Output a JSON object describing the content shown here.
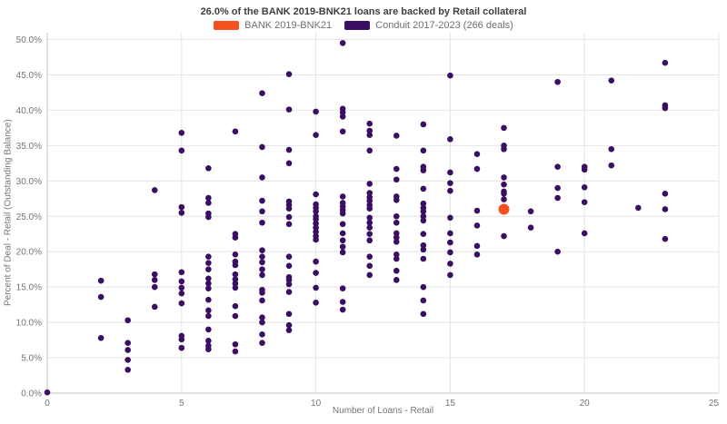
{
  "colors": {
    "bank_orange": "#f4511e",
    "conduit_purple": "#3a0f63",
    "grid": "#e4e4e4",
    "axis_line": "#c6c6c6",
    "tick_text": "#757575",
    "title_text": "#3f3f3f"
  },
  "chart_data": {
    "type": "scatter",
    "title": "26.0% of the BANK 2019-BNK21 loans are backed by Retail collateral",
    "xlabel": "Number of Loans - Retail",
    "ylabel": "Percent of Deal - Retail (Outstanding Balance)",
    "xlim": [
      0,
      25
    ],
    "ylim": [
      0,
      50
    ],
    "x_ticks": [
      0,
      5,
      10,
      15,
      20,
      25
    ],
    "y_ticks": [
      0,
      5,
      10,
      15,
      20,
      25,
      30,
      35,
      40,
      45,
      50
    ],
    "y_tick_suffix": "%",
    "grid": true,
    "legend_position": "top-center",
    "series": [
      {
        "name": "BANK 2019-BNK21",
        "color": "#f4511e",
        "marker_radius": 6,
        "points": [
          [
            17,
            26.0
          ]
        ]
      },
      {
        "name": "Conduit 2017-2023 (266 deals)",
        "color": "#3a0f63",
        "marker_radius": 3.3,
        "points": [
          [
            0,
            0.1
          ],
          [
            2,
            15.9
          ],
          [
            2,
            13.6
          ],
          [
            2,
            7.8
          ],
          [
            3,
            10.3
          ],
          [
            3,
            7.1
          ],
          [
            3,
            6.1
          ],
          [
            3,
            4.7
          ],
          [
            3,
            3.3
          ],
          [
            4,
            28.7
          ],
          [
            4,
            16.8
          ],
          [
            4,
            16.0
          ],
          [
            4,
            15.0
          ],
          [
            4,
            12.2
          ],
          [
            5,
            36.8
          ],
          [
            5,
            34.3
          ],
          [
            5,
            26.3
          ],
          [
            5,
            25.5
          ],
          [
            5,
            17.1
          ],
          [
            5,
            15.8
          ],
          [
            5,
            14.9
          ],
          [
            5,
            14.1
          ],
          [
            5,
            12.7
          ],
          [
            5,
            8.1
          ],
          [
            5,
            7.6
          ],
          [
            5,
            6.4
          ],
          [
            6,
            31.8
          ],
          [
            6,
            27.6
          ],
          [
            6,
            26.9
          ],
          [
            6,
            25.4
          ],
          [
            6,
            24.9
          ],
          [
            6,
            19.3
          ],
          [
            6,
            18.4
          ],
          [
            6,
            17.5
          ],
          [
            6,
            16.2
          ],
          [
            6,
            15.5
          ],
          [
            6,
            14.8
          ],
          [
            6,
            13.2
          ],
          [
            6,
            11.7
          ],
          [
            6,
            10.9
          ],
          [
            6,
            9.0
          ],
          [
            6,
            7.4
          ],
          [
            6,
            6.7
          ],
          [
            6,
            6.2
          ],
          [
            7,
            37.0
          ],
          [
            7,
            22.5
          ],
          [
            7,
            22.0
          ],
          [
            7,
            19.6
          ],
          [
            7,
            18.6
          ],
          [
            7,
            18.1
          ],
          [
            7,
            16.8
          ],
          [
            7,
            16.1
          ],
          [
            7,
            15.5
          ],
          [
            7,
            14.9
          ],
          [
            7,
            12.3
          ],
          [
            7,
            10.9
          ],
          [
            7,
            6.9
          ],
          [
            7,
            5.9
          ],
          [
            8,
            42.4
          ],
          [
            8,
            34.8
          ],
          [
            8,
            30.5
          ],
          [
            8,
            27.2
          ],
          [
            8,
            25.7
          ],
          [
            8,
            24.1
          ],
          [
            8,
            20.2
          ],
          [
            8,
            19.3
          ],
          [
            8,
            18.5
          ],
          [
            8,
            17.5
          ],
          [
            8,
            16.7
          ],
          [
            8,
            14.6
          ],
          [
            8,
            14.2
          ],
          [
            8,
            13.1
          ],
          [
            8,
            10.7
          ],
          [
            8,
            10.0
          ],
          [
            8,
            8.3
          ],
          [
            8,
            7.1
          ],
          [
            9,
            45.1
          ],
          [
            9,
            40.1
          ],
          [
            9,
            34.4
          ],
          [
            9,
            32.5
          ],
          [
            9,
            27.1
          ],
          [
            9,
            26.6
          ],
          [
            9,
            26.1
          ],
          [
            9,
            24.9
          ],
          [
            9,
            23.9
          ],
          [
            9,
            19.3
          ],
          [
            9,
            18.0
          ],
          [
            9,
            16.4
          ],
          [
            9,
            16.0
          ],
          [
            9,
            15.4
          ],
          [
            9,
            14.3
          ],
          [
            9,
            11.2
          ],
          [
            9,
            9.6
          ],
          [
            9,
            8.9
          ],
          [
            10,
            39.8
          ],
          [
            10,
            36.5
          ],
          [
            10,
            28.1
          ],
          [
            10,
            26.7
          ],
          [
            10,
            26.2
          ],
          [
            10,
            25.7
          ],
          [
            10,
            25.0
          ],
          [
            10,
            24.6
          ],
          [
            10,
            24.0
          ],
          [
            10,
            23.4
          ],
          [
            10,
            22.8
          ],
          [
            10,
            22.2
          ],
          [
            10,
            21.7
          ],
          [
            10,
            18.6
          ],
          [
            10,
            17.0
          ],
          [
            10,
            14.9
          ],
          [
            10,
            12.8
          ],
          [
            11,
            49.5
          ],
          [
            11,
            40.2
          ],
          [
            11,
            39.7
          ],
          [
            11,
            39.1
          ],
          [
            11,
            37.0
          ],
          [
            11,
            27.8
          ],
          [
            11,
            26.9
          ],
          [
            11,
            26.4
          ],
          [
            11,
            25.9
          ],
          [
            11,
            25.4
          ],
          [
            11,
            23.9
          ],
          [
            11,
            22.6
          ],
          [
            11,
            21.6
          ],
          [
            11,
            20.7
          ],
          [
            11,
            19.9
          ],
          [
            11,
            14.8
          ],
          [
            11,
            12.9
          ],
          [
            11,
            11.8
          ],
          [
            12,
            38.1
          ],
          [
            12,
            37.1
          ],
          [
            12,
            36.5
          ],
          [
            12,
            34.3
          ],
          [
            12,
            29.6
          ],
          [
            12,
            28.3
          ],
          [
            12,
            27.7
          ],
          [
            12,
            27.2
          ],
          [
            12,
            26.6
          ],
          [
            12,
            26.1
          ],
          [
            12,
            24.8
          ],
          [
            12,
            24.1
          ],
          [
            12,
            23.4
          ],
          [
            12,
            22.5
          ],
          [
            12,
            21.6
          ],
          [
            12,
            19.3
          ],
          [
            12,
            18.0
          ],
          [
            12,
            16.7
          ],
          [
            13,
            36.4
          ],
          [
            13,
            31.7
          ],
          [
            13,
            30.2
          ],
          [
            13,
            27.8
          ],
          [
            13,
            27.3
          ],
          [
            13,
            25.0
          ],
          [
            13,
            24.1
          ],
          [
            13,
            22.6
          ],
          [
            13,
            22.0
          ],
          [
            13,
            21.4
          ],
          [
            13,
            19.6
          ],
          [
            13,
            19.0
          ],
          [
            13,
            17.3
          ],
          [
            13,
            16.0
          ],
          [
            14,
            38.0
          ],
          [
            14,
            34.3
          ],
          [
            14,
            32.0
          ],
          [
            14,
            31.5
          ],
          [
            14,
            28.9
          ],
          [
            14,
            26.8
          ],
          [
            14,
            26.2
          ],
          [
            14,
            25.7
          ],
          [
            14,
            25.0
          ],
          [
            14,
            24.4
          ],
          [
            14,
            22.5
          ],
          [
            14,
            20.9
          ],
          [
            14,
            20.3
          ],
          [
            14,
            19.0
          ],
          [
            14,
            15.0
          ],
          [
            14,
            13.1
          ],
          [
            14,
            11.2
          ],
          [
            15,
            44.9
          ],
          [
            15,
            35.9
          ],
          [
            15,
            31.2
          ],
          [
            15,
            29.7
          ],
          [
            15,
            28.6
          ],
          [
            15,
            24.8
          ],
          [
            15,
            22.6
          ],
          [
            15,
            21.3
          ],
          [
            15,
            19.9
          ],
          [
            15,
            18.3
          ],
          [
            15,
            16.7
          ],
          [
            16,
            33.8
          ],
          [
            16,
            31.7
          ],
          [
            16,
            25.8
          ],
          [
            16,
            23.7
          ],
          [
            16,
            20.8
          ],
          [
            16,
            19.6
          ],
          [
            17,
            37.5
          ],
          [
            17,
            35.0
          ],
          [
            17,
            34.5
          ],
          [
            17,
            30.5
          ],
          [
            17,
            29.5
          ],
          [
            17,
            28.5
          ],
          [
            17,
            28.2
          ],
          [
            17,
            27.4
          ],
          [
            17,
            22.2
          ],
          [
            18,
            25.7
          ],
          [
            18,
            23.4
          ],
          [
            19,
            44.0
          ],
          [
            19,
            32.0
          ],
          [
            19,
            29.0
          ],
          [
            19,
            27.6
          ],
          [
            19,
            20.0
          ],
          [
            20,
            32.0
          ],
          [
            20,
            31.6
          ],
          [
            20,
            29.1
          ],
          [
            20,
            27.0
          ],
          [
            20,
            22.6
          ],
          [
            21,
            44.2
          ],
          [
            21,
            34.5
          ],
          [
            21,
            32.2
          ],
          [
            22,
            26.2
          ],
          [
            23,
            46.7
          ],
          [
            23,
            40.7
          ],
          [
            23,
            40.3
          ],
          [
            23,
            28.2
          ],
          [
            23,
            26.0
          ],
          [
            23,
            21.8
          ]
        ]
      }
    ]
  }
}
